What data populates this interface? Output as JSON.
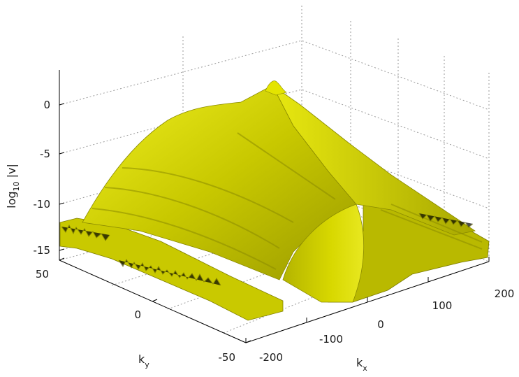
{
  "chart_data": {
    "type": "surface3d",
    "title": "",
    "xlabel": {
      "main": "k",
      "sub": "x"
    },
    "ylabel": {
      "main": "k",
      "sub": "y"
    },
    "zlabel": {
      "main": "log",
      "sub": "10",
      "suffix": " |v|"
    },
    "xlim": [
      -200,
      200
    ],
    "ylim": [
      -50,
      50
    ],
    "zlim": [
      -15,
      3
    ],
    "xticks": [
      -200,
      -100,
      0,
      100,
      200
    ],
    "yticks": [
      -50,
      0,
      50
    ],
    "zticks": [
      -15,
      -10,
      -5,
      0
    ],
    "grid": true,
    "surface_color": "#d8d800",
    "surface_shadow_color": "#8e8e00",
    "surface_highlight_color": "#ffff3a",
    "peak": {
      "x": 0,
      "y": 0,
      "z": 2
    },
    "noise_floor_z": -14
  }
}
